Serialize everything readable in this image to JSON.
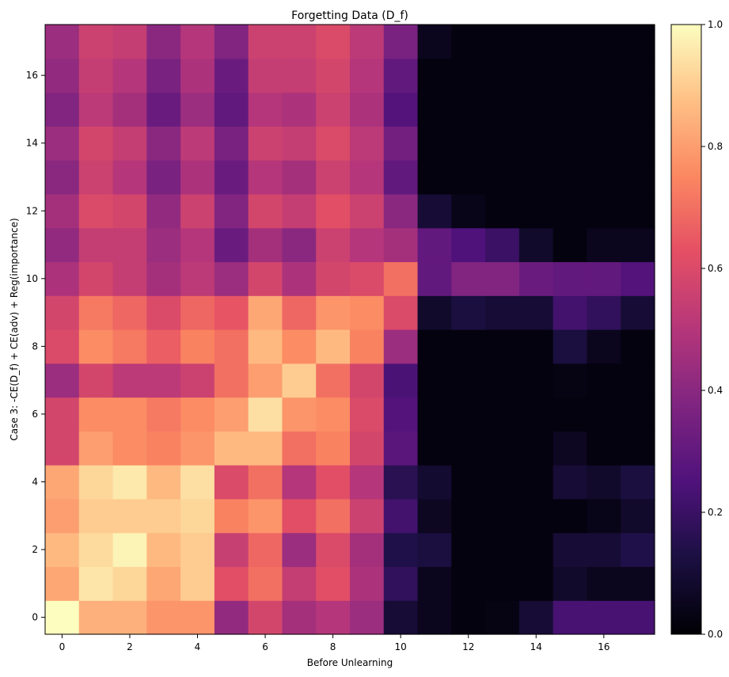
{
  "chart_data": {
    "type": "heatmap",
    "title": "Forgetting Data (D_f)",
    "xlabel": "Before Unlearning",
    "ylabel": "Case 3: -CE(D_f) + CE(adv) + Reg(importance)",
    "x_ticks": [
      0,
      2,
      4,
      6,
      8,
      10,
      12,
      14,
      16
    ],
    "y_ticks": [
      0,
      2,
      4,
      6,
      8,
      10,
      12,
      14,
      16
    ],
    "colorbar": {
      "min": 0.0,
      "max": 1.0,
      "ticks": [
        "0.0",
        "0.2",
        "0.4",
        "0.6",
        "0.8",
        "1.0"
      ],
      "colormap": "magma"
    },
    "row_order": "first row is y = 0 (bottom); first value in each row is x = 0",
    "values": [
      [
        1.0,
        0.84,
        0.84,
        0.78,
        0.78,
        0.42,
        0.58,
        0.46,
        0.5,
        0.44,
        0.1,
        0.05,
        0.02,
        0.03,
        0.1,
        0.23,
        0.23,
        0.23
      ],
      [
        0.82,
        0.95,
        0.92,
        0.82,
        0.9,
        0.62,
        0.7,
        0.54,
        0.62,
        0.48,
        0.18,
        0.05,
        0.02,
        0.02,
        0.02,
        0.08,
        0.05,
        0.05
      ],
      [
        0.86,
        0.93,
        0.98,
        0.86,
        0.9,
        0.55,
        0.68,
        0.44,
        0.6,
        0.46,
        0.14,
        0.12,
        0.02,
        0.02,
        0.02,
        0.1,
        0.1,
        0.14
      ],
      [
        0.8,
        0.9,
        0.9,
        0.9,
        0.92,
        0.74,
        0.78,
        0.62,
        0.7,
        0.56,
        0.22,
        0.06,
        0.02,
        0.02,
        0.02,
        0.02,
        0.04,
        0.08
      ],
      [
        0.82,
        0.92,
        0.96,
        0.86,
        0.94,
        0.6,
        0.7,
        0.5,
        0.62,
        0.5,
        0.16,
        0.09,
        0.02,
        0.02,
        0.02,
        0.1,
        0.08,
        0.12
      ],
      [
        0.58,
        0.8,
        0.76,
        0.74,
        0.78,
        0.86,
        0.86,
        0.7,
        0.74,
        0.58,
        0.28,
        0.02,
        0.02,
        0.02,
        0.02,
        0.06,
        0.02,
        0.02
      ],
      [
        0.58,
        0.76,
        0.76,
        0.72,
        0.76,
        0.8,
        0.94,
        0.78,
        0.76,
        0.6,
        0.26,
        0.02,
        0.02,
        0.02,
        0.02,
        0.02,
        0.02,
        0.02
      ],
      [
        0.44,
        0.58,
        0.52,
        0.52,
        0.56,
        0.7,
        0.8,
        0.9,
        0.7,
        0.58,
        0.24,
        0.02,
        0.02,
        0.02,
        0.02,
        0.03,
        0.02,
        0.02
      ],
      [
        0.6,
        0.76,
        0.72,
        0.66,
        0.74,
        0.7,
        0.86,
        0.76,
        0.86,
        0.74,
        0.44,
        0.02,
        0.02,
        0.02,
        0.02,
        0.12,
        0.05,
        0.02
      ],
      [
        0.58,
        0.72,
        0.68,
        0.6,
        0.68,
        0.64,
        0.82,
        0.68,
        0.78,
        0.76,
        0.6,
        0.08,
        0.12,
        0.1,
        0.1,
        0.22,
        0.18,
        0.1
      ],
      [
        0.48,
        0.58,
        0.54,
        0.46,
        0.52,
        0.44,
        0.58,
        0.48,
        0.58,
        0.6,
        0.7,
        0.3,
        0.38,
        0.38,
        0.32,
        0.3,
        0.3,
        0.26
      ],
      [
        0.42,
        0.54,
        0.54,
        0.44,
        0.5,
        0.32,
        0.46,
        0.4,
        0.56,
        0.5,
        0.46,
        0.3,
        0.25,
        0.2,
        0.08,
        0.02,
        0.05,
        0.05
      ],
      [
        0.46,
        0.6,
        0.58,
        0.42,
        0.56,
        0.38,
        0.58,
        0.54,
        0.62,
        0.56,
        0.4,
        0.1,
        0.04,
        0.02,
        0.02,
        0.02,
        0.02,
        0.02
      ],
      [
        0.4,
        0.56,
        0.5,
        0.36,
        0.48,
        0.32,
        0.5,
        0.46,
        0.56,
        0.5,
        0.3,
        0.02,
        0.02,
        0.02,
        0.02,
        0.02,
        0.02,
        0.02
      ],
      [
        0.44,
        0.58,
        0.54,
        0.4,
        0.52,
        0.36,
        0.56,
        0.54,
        0.6,
        0.52,
        0.34,
        0.02,
        0.02,
        0.02,
        0.02,
        0.02,
        0.02,
        0.02
      ],
      [
        0.38,
        0.52,
        0.46,
        0.32,
        0.44,
        0.3,
        0.5,
        0.48,
        0.56,
        0.48,
        0.26,
        0.02,
        0.02,
        0.02,
        0.02,
        0.02,
        0.02,
        0.02
      ],
      [
        0.42,
        0.54,
        0.5,
        0.36,
        0.48,
        0.32,
        0.54,
        0.54,
        0.58,
        0.5,
        0.3,
        0.02,
        0.02,
        0.02,
        0.02,
        0.02,
        0.02,
        0.02
      ],
      [
        0.44,
        0.56,
        0.54,
        0.4,
        0.5,
        0.38,
        0.56,
        0.56,
        0.6,
        0.52,
        0.36,
        0.05,
        0.02,
        0.02,
        0.02,
        0.02,
        0.02,
        0.02
      ]
    ]
  }
}
